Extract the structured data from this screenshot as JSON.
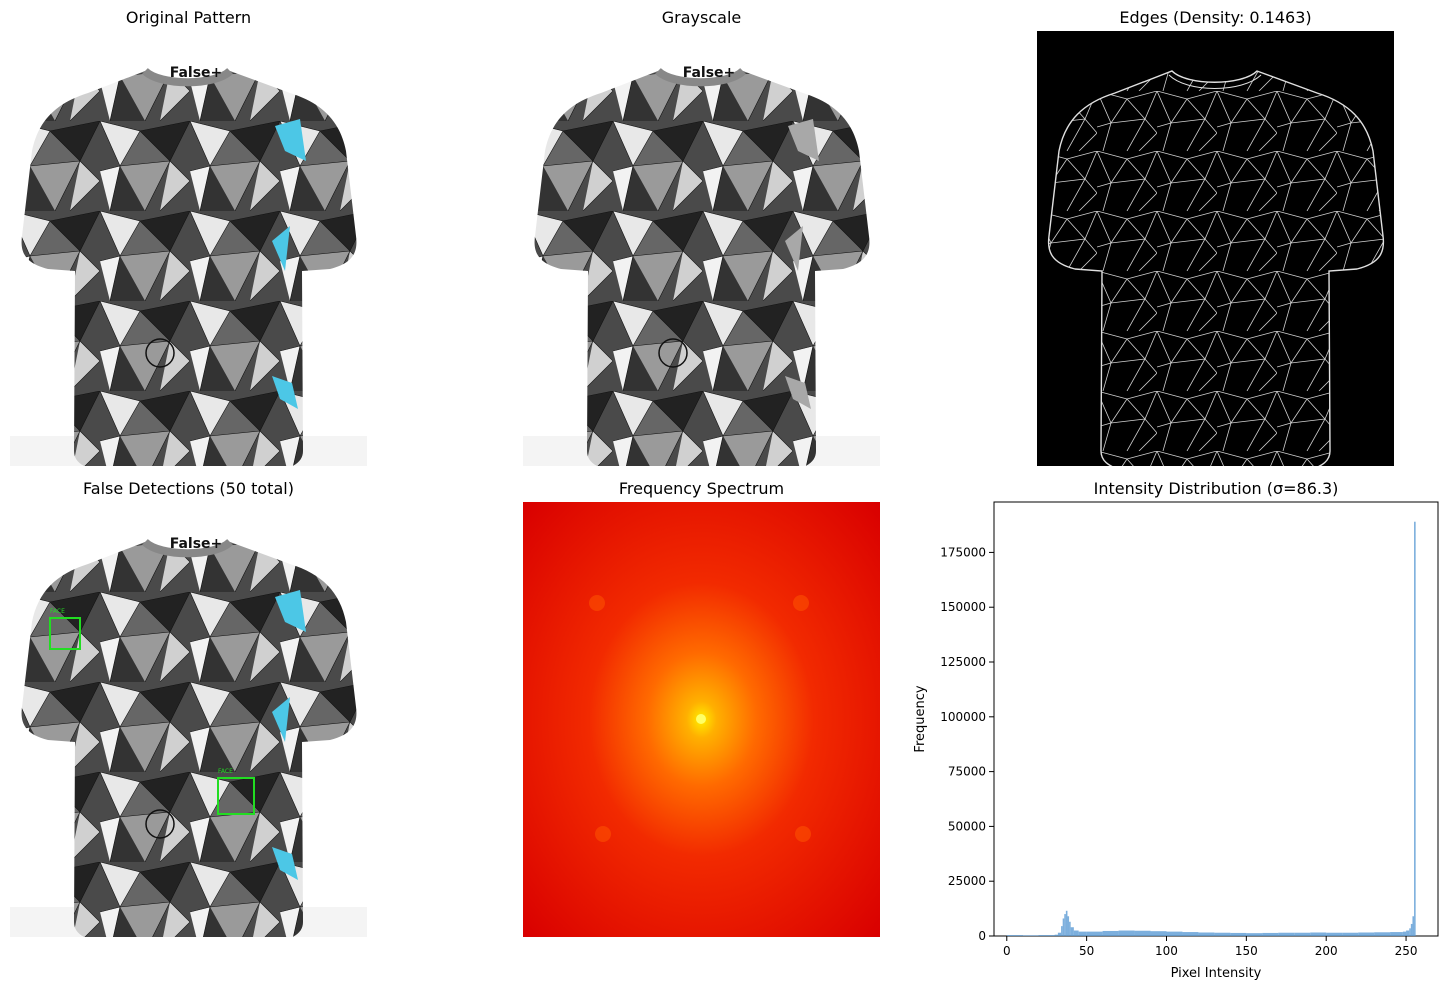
{
  "panels": {
    "original": {
      "title": "Original Pattern",
      "logo_text": "False+"
    },
    "grayscale": {
      "title": "Grayscale",
      "logo_text": "False+"
    },
    "edges": {
      "title": "Edges (Density: 0.1463)"
    },
    "detections": {
      "title": "False Detections (50 total)",
      "box_label": "FACE",
      "logo_text": "False+"
    },
    "spectrum": {
      "title": "Frequency Spectrum"
    },
    "histogram": {
      "title": "Intensity Distribution (σ=86.3)"
    }
  },
  "colors": {
    "shirt_dark": "#3a3a3a",
    "shirt_light": "#e6e6e6",
    "accent_cyan": "#4cc7e6",
    "detection_box": "#22dd22",
    "spectrum_outer": "#e00000",
    "spectrum_center": "#ffee00",
    "histogram_bar": "#5b9bd5"
  },
  "chart_data": {
    "type": "bar",
    "title": "Intensity Distribution (σ=86.3)",
    "xlabel": "Pixel Intensity",
    "ylabel": "Frequency",
    "xlim": [
      -8,
      270
    ],
    "ylim": [
      0,
      198000
    ],
    "xticks": [
      0,
      50,
      100,
      150,
      200,
      250
    ],
    "yticks": [
      0,
      25000,
      50000,
      75000,
      100000,
      125000,
      150000,
      175000
    ],
    "x": [
      0,
      10,
      20,
      30,
      32,
      34,
      35,
      36,
      37,
      38,
      39,
      40,
      42,
      45,
      50,
      60,
      70,
      80,
      90,
      100,
      110,
      120,
      130,
      140,
      150,
      160,
      170,
      180,
      190,
      200,
      210,
      220,
      230,
      240,
      248,
      250,
      252,
      253,
      254,
      255
    ],
    "values": [
      400,
      300,
      400,
      600,
      1500,
      4500,
      8000,
      10000,
      11500,
      9000,
      6500,
      4000,
      2500,
      2000,
      2000,
      2300,
      2500,
      2400,
      2200,
      2000,
      1800,
      1600,
      1500,
      1400,
      1300,
      1400,
      1500,
      1500,
      1600,
      1500,
      1500,
      1600,
      1700,
      1800,
      2000,
      2500,
      3500,
      5500,
      9000,
      189000
    ]
  }
}
